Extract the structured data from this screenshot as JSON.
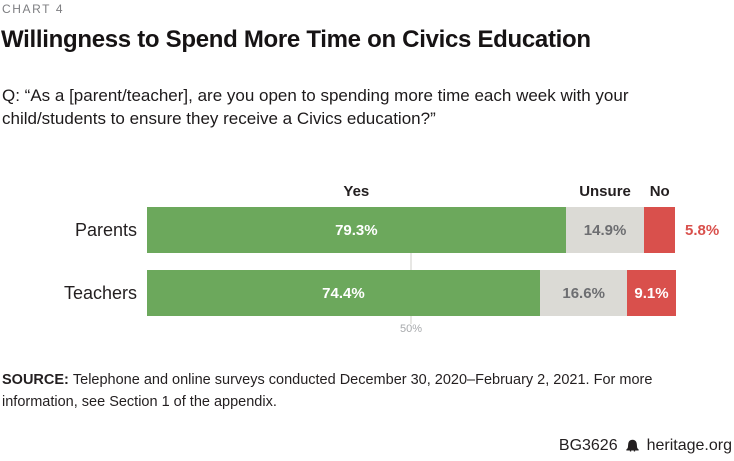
{
  "meta": {
    "kicker": "CHART 4",
    "title": "Willingness to Spend More Time on Civics Education",
    "question": "Q: “As a [parent/teacher], are you open to spending more time each week with your child/students to ensure they receive a Civics education?”"
  },
  "chart_data": {
    "type": "bar",
    "orientation": "horizontal",
    "stacked": true,
    "title": "Willingness to Spend More Time on Civics Education",
    "categories": [
      "Parents",
      "Teachers"
    ],
    "series": [
      {
        "name": "Yes",
        "color": "#6ca85c",
        "label_color": "#ffffff",
        "values": [
          79.3,
          74.4
        ]
      },
      {
        "name": "Unsure",
        "color": "#dbdad5",
        "label_color": "#6d6e71",
        "values": [
          14.9,
          16.6
        ]
      },
      {
        "name": "No",
        "color": "#d9504c",
        "label_color": "#ffffff",
        "values": [
          5.8,
          9.1
        ]
      }
    ],
    "value_suffix": "%",
    "xlim": [
      0,
      100
    ],
    "legend_position": "top",
    "grid": "single-tick",
    "tick": {
      "value": 50,
      "label": "50%"
    }
  },
  "source": {
    "label": "SOURCE:",
    "text": "Telephone and online surveys conducted December 30, 2020–February 2, 2021. For more information, see Section 1 of the appendix."
  },
  "footer": {
    "id": "BG3626",
    "icon": "liberty-bell-icon",
    "site": "heritage.org"
  }
}
